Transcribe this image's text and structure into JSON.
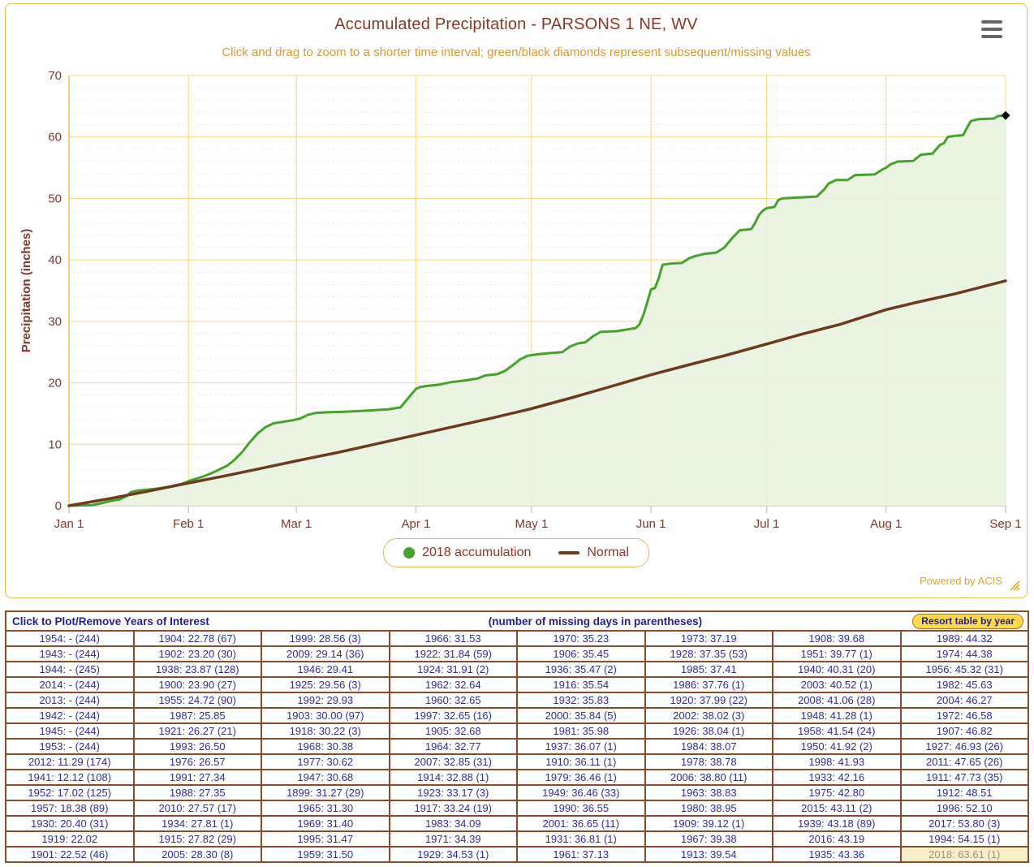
{
  "header": {
    "title": "Accumulated Precipitation - PARSONS 1 NE, WV",
    "subtitle": "Click and drag to zoom to a shorter time interval; green/black diamonds represent subsequent/missing values"
  },
  "footer": {
    "powered_by": "Powered by ACIS"
  },
  "colors": {
    "title_text": "#8b3626",
    "subtitle_text": "#d79b2f",
    "axis_label_text": "#7a392a",
    "grid_yellow": "#f2d979",
    "axis_yellow": "#e8c75a",
    "minor_grid_dots": "#d9d9ce",
    "x_tick": "#c3cede",
    "green_line": "#44a22c",
    "green_fill": "#e9f2e0",
    "brown_line": "#6e3a1d",
    "missing_marker": "#000000",
    "table_border": "#8b4a2a",
    "table_text": "#2d2d99",
    "header_text": "#1f1f8f",
    "button_bg": "#ffd84d",
    "highlight_bg": "#f8efc6",
    "highlight_text": "#98937f"
  },
  "chart_data": {
    "type": "line",
    "title": "Accumulated Precipitation - PARSONS 1 NE, WV",
    "ylabel": "Precipitation (inches)",
    "ylim": [
      0,
      70
    ],
    "ytick_step": 10,
    "minor_ytick_step": 2,
    "xlim_days": [
      0,
      243
    ],
    "grid": "major yellow solid, minor dotted",
    "legend_position": "bottom-center",
    "xticks": [
      {
        "day": 0,
        "label": "Jan 1"
      },
      {
        "day": 31,
        "label": "Feb 1"
      },
      {
        "day": 59,
        "label": "Mar 1"
      },
      {
        "day": 90,
        "label": "Apr 1"
      },
      {
        "day": 120,
        "label": "May 1"
      },
      {
        "day": 151,
        "label": "Jun 1"
      },
      {
        "day": 181,
        "label": "Jul 1"
      },
      {
        "day": 212,
        "label": "Aug 1"
      },
      {
        "day": 243,
        "label": "Sep 1"
      }
    ],
    "series": [
      {
        "name": "2018 accumulation",
        "type": "area-step",
        "marker": "circle",
        "color": "#44a22c",
        "fill": "#e9f2e0",
        "points": [
          [
            0,
            0
          ],
          [
            3,
            0.05
          ],
          [
            6,
            0.1
          ],
          [
            9,
            0.5
          ],
          [
            11,
            0.8
          ],
          [
            13,
            1.0
          ],
          [
            15,
            1.6
          ],
          [
            16,
            2.2
          ],
          [
            18,
            2.5
          ],
          [
            20,
            2.6
          ],
          [
            23,
            2.8
          ],
          [
            26,
            3.1
          ],
          [
            29,
            3.5
          ],
          [
            31,
            4.0
          ],
          [
            33,
            4.4
          ],
          [
            35,
            4.8
          ],
          [
            37,
            5.3
          ],
          [
            39,
            5.9
          ],
          [
            41,
            6.5
          ],
          [
            43,
            7.5
          ],
          [
            45,
            8.8
          ],
          [
            47,
            10.4
          ],
          [
            49,
            11.8
          ],
          [
            51,
            12.8
          ],
          [
            53,
            13.4
          ],
          [
            55,
            13.6
          ],
          [
            58,
            13.9
          ],
          [
            60,
            14.2
          ],
          [
            62,
            14.8
          ],
          [
            64,
            15.1
          ],
          [
            67,
            15.2
          ],
          [
            72,
            15.3
          ],
          [
            78,
            15.5
          ],
          [
            83,
            15.7
          ],
          [
            86,
            16.0
          ],
          [
            88,
            17.5
          ],
          [
            90,
            19.0
          ],
          [
            91,
            19.3
          ],
          [
            93,
            19.5
          ],
          [
            96,
            19.7
          ],
          [
            99,
            20.1
          ],
          [
            103,
            20.4
          ],
          [
            106,
            20.7
          ],
          [
            108,
            21.2
          ],
          [
            111,
            21.4
          ],
          [
            113,
            21.9
          ],
          [
            115,
            22.8
          ],
          [
            117,
            23.8
          ],
          [
            119,
            24.4
          ],
          [
            121,
            24.6
          ],
          [
            124,
            24.8
          ],
          [
            128,
            25.0
          ],
          [
            130,
            25.9
          ],
          [
            132,
            26.4
          ],
          [
            134,
            26.6
          ],
          [
            136,
            27.6
          ],
          [
            138,
            28.3
          ],
          [
            142,
            28.4
          ],
          [
            145,
            28.7
          ],
          [
            147,
            28.9
          ],
          [
            148,
            29.5
          ],
          [
            149,
            31.0
          ],
          [
            150,
            33.0
          ],
          [
            151,
            35.2
          ],
          [
            152,
            35.4
          ],
          [
            153,
            37.0
          ],
          [
            154,
            39.2
          ],
          [
            156,
            39.4
          ],
          [
            159,
            39.5
          ],
          [
            161,
            40.3
          ],
          [
            163,
            40.7
          ],
          [
            165,
            41.0
          ],
          [
            168,
            41.2
          ],
          [
            170,
            42.0
          ],
          [
            172,
            43.5
          ],
          [
            174,
            44.8
          ],
          [
            177,
            45.0
          ],
          [
            178,
            46.0
          ],
          [
            179,
            47.3
          ],
          [
            180,
            48.0
          ],
          [
            181,
            48.4
          ],
          [
            183,
            48.6
          ],
          [
            184,
            49.7
          ],
          [
            185,
            50.0
          ],
          [
            188,
            50.1
          ],
          [
            191,
            50.2
          ],
          [
            194,
            50.3
          ],
          [
            196,
            51.5
          ],
          [
            197,
            52.4
          ],
          [
            199,
            53.0
          ],
          [
            202,
            53.0
          ],
          [
            204,
            53.8
          ],
          [
            209,
            53.9
          ],
          [
            211,
            54.7
          ],
          [
            212,
            55.0
          ],
          [
            213,
            55.5
          ],
          [
            215,
            56.0
          ],
          [
            219,
            56.1
          ],
          [
            221,
            57.1
          ],
          [
            224,
            57.3
          ],
          [
            226,
            58.7
          ],
          [
            227,
            59.0
          ],
          [
            228,
            60.0
          ],
          [
            230,
            60.2
          ],
          [
            232,
            60.3
          ],
          [
            233,
            61.5
          ],
          [
            234,
            62.6
          ],
          [
            236,
            62.9
          ],
          [
            240,
            63.0
          ],
          [
            241,
            63.4
          ],
          [
            243,
            63.5
          ]
        ]
      },
      {
        "name": "Normal",
        "type": "line",
        "marker": "line",
        "color": "#6e3a1d",
        "points": [
          [
            0,
            0
          ],
          [
            10,
            1.1
          ],
          [
            20,
            2.3
          ],
          [
            31,
            3.7
          ],
          [
            40,
            4.8
          ],
          [
            50,
            6.1
          ],
          [
            59,
            7.3
          ],
          [
            70,
            8.7
          ],
          [
            80,
            10.1
          ],
          [
            90,
            11.5
          ],
          [
            100,
            12.9
          ],
          [
            110,
            14.3
          ],
          [
            120,
            15.8
          ],
          [
            130,
            17.5
          ],
          [
            140,
            19.3
          ],
          [
            151,
            21.3
          ],
          [
            160,
            22.8
          ],
          [
            170,
            24.4
          ],
          [
            181,
            26.3
          ],
          [
            190,
            27.9
          ],
          [
            200,
            29.5
          ],
          [
            212,
            31.9
          ],
          [
            220,
            33.1
          ],
          [
            230,
            34.5
          ],
          [
            243,
            36.6
          ]
        ]
      }
    ],
    "missing_value_marker": {
      "shape": "diamond",
      "color": "#000000",
      "day": 243,
      "value": 63.5
    }
  },
  "table": {
    "header_left": "Click to Plot/Remove Years of Interest",
    "header_center": "(number of missing days in parentheses)",
    "resort_button_label": "Resort table by year",
    "columns": 8,
    "rows": [
      [
        "1954: - (244)",
        "1904: 22.78 (67)",
        "1999: 28.56 (3)",
        "1966: 31.53",
        "1970: 35.23",
        "1973: 37.19",
        "1908: 39.68",
        "1989: 44.32"
      ],
      [
        "1943: - (244)",
        "1902: 23.20 (30)",
        "2009: 29.14 (36)",
        "1922: 31.84 (59)",
        "1906: 35.45",
        "1928: 37.35 (53)",
        "1951: 39.77 (1)",
        "1974: 44.38"
      ],
      [
        "1944: - (245)",
        "1938: 23.87 (128)",
        "1946: 29.41",
        "1924: 31.91 (2)",
        "1936: 35.47 (2)",
        "1985: 37.41",
        "1940: 40.31 (20)",
        "1956: 45.32 (31)"
      ],
      [
        "2014: - (244)",
        "1900: 23.90 (27)",
        "1925: 29.56 (3)",
        "1962: 32.64",
        "1916: 35.54",
        "1986: 37.76 (1)",
        "2003: 40.52 (1)",
        "1982: 45.63"
      ],
      [
        "2013: - (244)",
        "1955: 24.72 (90)",
        "1992: 29.93",
        "1960: 32.65",
        "1932: 35.83",
        "1920: 37.99 (22)",
        "2008: 41.06 (28)",
        "2004: 46.27"
      ],
      [
        "1942: - (244)",
        "1987: 25.85",
        "1903: 30.00 (97)",
        "1997: 32.65 (16)",
        "2000: 35.84 (5)",
        "2002: 38.02 (3)",
        "1948: 41.28 (1)",
        "1972: 46.58"
      ],
      [
        "1945: - (244)",
        "1921: 26.27 (21)",
        "1918: 30.22 (3)",
        "1905: 32.68",
        "1981: 35.98",
        "1926: 38.04 (1)",
        "1958: 41.54 (24)",
        "1907: 46.82"
      ],
      [
        "1953: - (244)",
        "1993: 26.50",
        "1968: 30.38",
        "1964: 32.77",
        "1937: 36.07 (1)",
        "1984: 38.07",
        "1950: 41.92 (2)",
        "1927: 46.93 (26)"
      ],
      [
        "2012: 11.29 (174)",
        "1976: 26.57",
        "1977: 30.62",
        "2007: 32.85 (31)",
        "1910: 36.11 (1)",
        "1978: 38.78",
        "1998: 41.93",
        "2011: 47.65 (26)"
      ],
      [
        "1941: 12.12 (108)",
        "1991: 27.34",
        "1947: 30.68",
        "1914: 32.88 (1)",
        "1979: 36.46 (1)",
        "2006: 38.80 (11)",
        "1933: 42.16",
        "1911: 47.73 (35)"
      ],
      [
        "1952: 17.02 (125)",
        "1988: 27.35",
        "1899: 31.27 (29)",
        "1923: 33.17 (3)",
        "1949: 36.46 (33)",
        "1963: 38.83",
        "1975: 42.80",
        "1912: 48.51"
      ],
      [
        "1957: 18.38 (89)",
        "2010: 27.57 (17)",
        "1965: 31.30",
        "1917: 33.24 (19)",
        "1990: 36.55",
        "1980: 38.95",
        "2015: 43.11 (2)",
        "1996: 52.10"
      ],
      [
        "1930: 20.40 (31)",
        "1934: 27.81 (1)",
        "1969: 31.40",
        "1983: 34.09",
        "2001: 36.65 (11)",
        "1909: 39.12 (1)",
        "1939: 43.18 (89)",
        "2017: 53.80 (3)"
      ],
      [
        "1919: 22.02",
        "1915: 27.82 (29)",
        "1995: 31.47",
        "1971: 34.39",
        "1931: 36.81 (1)",
        "1967: 39.38",
        "2016: 43.19",
        "1994: 54.15 (1)"
      ],
      [
        "1901: 22.52 (46)",
        "2005: 28.30 (8)",
        "1959: 31.50",
        "1929: 34.53 (1)",
        "1961: 37.13",
        "1913: 39.54",
        "1935: 43.36",
        "2018: 63.61 (1)"
      ]
    ],
    "highlighted_cell": {
      "row": 14,
      "col": 7,
      "value": "2018: 63.61 (1)"
    }
  }
}
